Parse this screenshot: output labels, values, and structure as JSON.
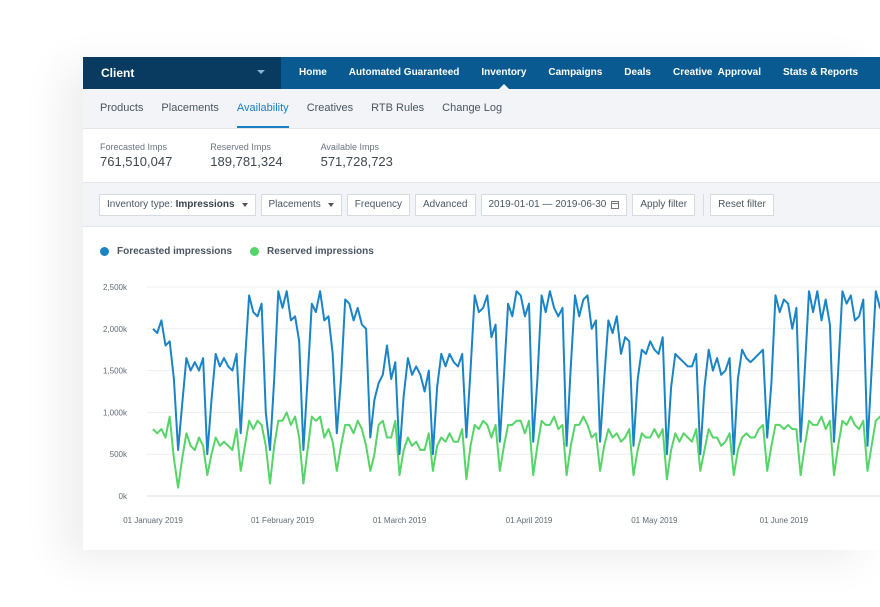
{
  "topbar": {
    "client_label": "Client",
    "nav": [
      "Home",
      "Automated Guaranteed",
      "Inventory",
      "Campaigns",
      "Deals",
      "Creative  Approval",
      "Stats & Reports"
    ],
    "active_nav": "Inventory"
  },
  "subnav": {
    "items": [
      "Products",
      "Placements",
      "Availability",
      "Creatives",
      "RTB Rules",
      "Change Log"
    ],
    "active": "Availability"
  },
  "stats": [
    {
      "label": "Forecasted Imps",
      "value": "761,510,047"
    },
    {
      "label": "Reserved Imps",
      "value": "189,781,324"
    },
    {
      "label": "Available Imps",
      "value": "571,728,723"
    }
  ],
  "filters": {
    "inventory_type_prefix": "Inventory type:",
    "inventory_type_value": "Impressions",
    "placements": "Placements",
    "frequency": "Frequency",
    "advanced": "Advanced",
    "date_range": "2019-01-01 — 2019-06-30",
    "apply": "Apply filter",
    "reset": "Reset filter"
  },
  "colors": {
    "nav_bg": "#0a5a92",
    "client_bg": "#093a5f",
    "accent": "#1b80c3",
    "forecasted": "#1a84c6",
    "reserved": "#56d468"
  },
  "chart_data": {
    "type": "line",
    "x_tick_labels": [
      "01 January 2019",
      "01 February 2019",
      "01 March 2019",
      "01 April 2019",
      "01 May 2019",
      "01 June 2019"
    ],
    "y_tick_labels": [
      "2,500k",
      "2,000k",
      "1,500k",
      "1,000k",
      "500k",
      "0k"
    ],
    "y_ticks": [
      2500,
      2000,
      1500,
      1000,
      500,
      0
    ],
    "ylim": [
      0,
      2500
    ],
    "x_domain": [
      0,
      174
    ],
    "x_tick_positions": [
      0,
      31,
      59,
      90,
      120,
      151
    ],
    "grid": "horizontal",
    "legend_placement": "top-left",
    "series": [
      {
        "name": "Forecasted impressions",
        "values": [
          2000,
          1950,
          2100,
          1800,
          1850,
          1400,
          550,
          1100,
          1650,
          1500,
          1600,
          1500,
          1650,
          500,
          1150,
          1700,
          1550,
          1650,
          1550,
          1500,
          1700,
          750,
          1600,
          2400,
          2200,
          2150,
          2300,
          1000,
          550,
          1400,
          2450,
          2250,
          2450,
          2100,
          2150,
          1850,
          550,
          1400,
          2300,
          2200,
          2450,
          2100,
          2150,
          1700,
          750,
          1400,
          2350,
          2300,
          2100,
          2250,
          2050,
          2000,
          700,
          1150,
          1350,
          1450,
          1800,
          1400,
          1600,
          500,
          1200,
          1650,
          1450,
          1550,
          1450,
          1250,
          1500,
          500,
          1300,
          1700,
          1550,
          1700,
          1600,
          1550,
          1700,
          700,
          1500,
          2400,
          2200,
          2250,
          2400,
          1900,
          2050,
          650,
          1450,
          2300,
          2150,
          2450,
          2400,
          2150,
          2300,
          650,
          1400,
          2400,
          2200,
          2450,
          2250,
          2150,
          2250,
          600,
          1550,
          2400,
          2150,
          2350,
          2400,
          2000,
          2100,
          650,
          1400,
          2100,
          1950,
          2150,
          1700,
          1900,
          1850,
          600,
          1400,
          1750,
          1700,
          1850,
          1750,
          1700,
          1900,
          500,
          1300,
          1700,
          1650,
          1600,
          1550,
          1550,
          1700,
          500,
          1300,
          1750,
          1500,
          1650,
          1450,
          1500,
          1650,
          500,
          1400,
          1750,
          1650,
          1600,
          1650,
          1700,
          1750,
          700,
          1350,
          2400,
          2200,
          2350,
          2300,
          2000,
          2250,
          650,
          1500,
          2450,
          2200,
          2450,
          2100,
          2350,
          2050,
          650,
          1500,
          2450,
          2300,
          2400,
          2100,
          2150,
          2350,
          600,
          1500,
          2450,
          2250,
          2400,
          2150,
          2400,
          800
        ]
      },
      {
        "name": "Reserved impressions",
        "values": [
          800,
          750,
          800,
          700,
          950,
          450,
          100,
          450,
          750,
          600,
          550,
          700,
          600,
          250,
          500,
          700,
          600,
          650,
          600,
          550,
          800,
          300,
          600,
          900,
          800,
          900,
          850,
          600,
          150,
          600,
          900,
          900,
          1000,
          850,
          950,
          700,
          150,
          550,
          950,
          900,
          950,
          700,
          800,
          650,
          300,
          600,
          850,
          850,
          750,
          900,
          800,
          600,
          300,
          500,
          850,
          900,
          700,
          700,
          900,
          250,
          550,
          700,
          600,
          650,
          550,
          550,
          750,
          300,
          600,
          700,
          650,
          750,
          650,
          650,
          800,
          200,
          600,
          850,
          800,
          900,
          850,
          700,
          850,
          300,
          600,
          850,
          850,
          900,
          900,
          750,
          900,
          250,
          600,
          900,
          850,
          850,
          950,
          800,
          850,
          250,
          600,
          850,
          850,
          950,
          850,
          700,
          750,
          300,
          600,
          800,
          700,
          750,
          650,
          700,
          800,
          250,
          550,
          750,
          700,
          700,
          800,
          700,
          800,
          200,
          550,
          750,
          650,
          750,
          700,
          650,
          800,
          300,
          550,
          800,
          700,
          700,
          600,
          650,
          750,
          250,
          550,
          700,
          750,
          700,
          700,
          800,
          850,
          300,
          600,
          850,
          850,
          800,
          850,
          800,
          800,
          250,
          600,
          900,
          850,
          850,
          950,
          800,
          900,
          250,
          600,
          900,
          850,
          950,
          850,
          800,
          900,
          300,
          600,
          900,
          950,
          850,
          900,
          850,
          800,
          250
        ]
      }
    ]
  }
}
